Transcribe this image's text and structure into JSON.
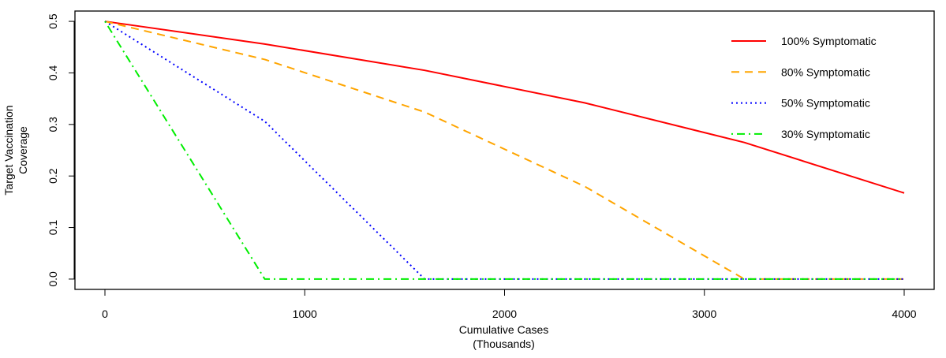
{
  "chart_data": {
    "type": "line",
    "title": "",
    "xlabel": [
      "Cumulative Cases",
      "(Thousands)"
    ],
    "ylabel": [
      "Target Vaccination",
      "Coverage"
    ],
    "xlim": [
      -150,
      4150
    ],
    "ylim": [
      -0.02,
      0.52
    ],
    "x_ticks": [
      0,
      1000,
      2000,
      3000,
      4000
    ],
    "y_ticks": [
      0.0,
      0.1,
      0.2,
      0.3,
      0.4,
      0.5
    ],
    "x_tick_labels": [
      "0",
      "1000",
      "2000",
      "3000",
      "4000"
    ],
    "y_tick_labels": [
      "0.0",
      "0.1",
      "0.2",
      "0.3",
      "0.4",
      "0.5"
    ],
    "grid": false,
    "legend_position": "top-right",
    "series": [
      {
        "name": "100% Symptomatic",
        "color": "#FF0000",
        "line_style": "solid",
        "x": [
          0,
          800,
          1600,
          2400,
          3200,
          4000
        ],
        "y": [
          0.5,
          0.456,
          0.405,
          0.342,
          0.265,
          0.167
        ]
      },
      {
        "name": "80% Symptomatic",
        "color": "#FFA500",
        "line_style": "dashed",
        "x": [
          0,
          800,
          1600,
          2400,
          3200,
          4000
        ],
        "y": [
          0.5,
          0.426,
          0.324,
          0.18,
          0.0,
          0.0
        ]
      },
      {
        "name": "50% Symptomatic",
        "color": "#0000FF",
        "line_style": "dotted",
        "x": [
          0,
          800,
          1600,
          2400,
          3200,
          4000
        ],
        "y": [
          0.5,
          0.306,
          0.0,
          0.0,
          0.0,
          0.0
        ]
      },
      {
        "name": "30% Symptomatic",
        "color": "#00EE00",
        "line_style": "dotdash",
        "x": [
          0,
          800,
          1600,
          2400,
          3200,
          4000
        ],
        "y": [
          0.5,
          0.0,
          0.0,
          0.0,
          0.0,
          0.0
        ]
      }
    ]
  }
}
